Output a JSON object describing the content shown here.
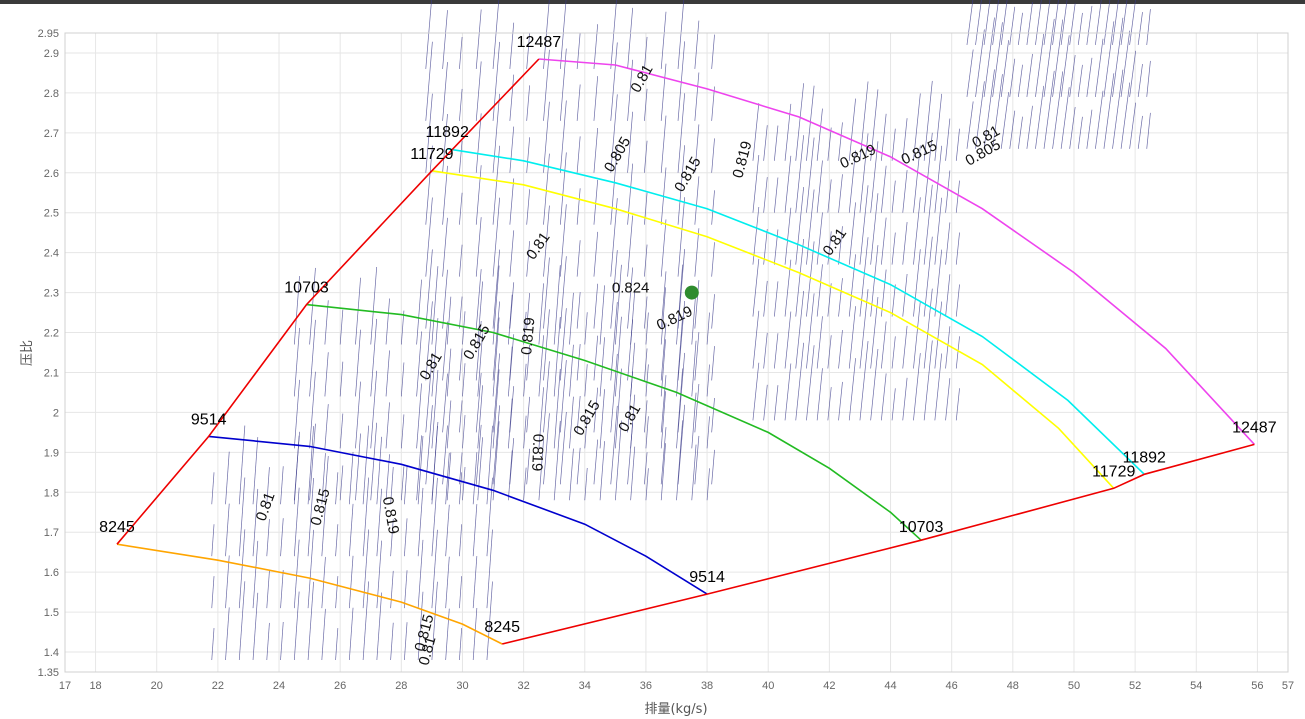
{
  "chart_data": {
    "type": "line",
    "title": "",
    "xlabel": "排量(kg/s)",
    "ylabel": "压比",
    "xlim": [
      17,
      57
    ],
    "ylim": [
      1.35,
      2.95
    ],
    "x_ticks": [
      17,
      18,
      20,
      22,
      24,
      26,
      28,
      30,
      32,
      34,
      36,
      38,
      40,
      42,
      44,
      46,
      48,
      50,
      52,
      54,
      56,
      57
    ],
    "y_ticks": [
      1.35,
      1.4,
      1.5,
      1.6,
      1.7,
      1.8,
      1.9,
      2,
      2.1,
      2.2,
      2.3,
      2.4,
      2.5,
      2.6,
      2.7,
      2.8,
      2.9,
      2.95
    ],
    "grid": true,
    "speed_lines": [
      {
        "name": "8245",
        "color": "#ffa500",
        "points": [
          [
            18.7,
            1.67
          ],
          [
            22,
            1.63
          ],
          [
            25,
            1.585
          ],
          [
            28,
            1.525
          ],
          [
            30,
            1.47
          ],
          [
            31.3,
            1.42
          ]
        ],
        "labels": [
          {
            "text": "8245",
            "x": 18.7,
            "y": 1.7
          },
          {
            "text": "8245",
            "x": 31.3,
            "y": 1.45
          }
        ]
      },
      {
        "name": "9514",
        "color": "#0000cd",
        "points": [
          [
            21.7,
            1.94
          ],
          [
            25,
            1.915
          ],
          [
            28,
            1.87
          ],
          [
            31,
            1.805
          ],
          [
            34,
            1.72
          ],
          [
            36,
            1.64
          ],
          [
            38,
            1.545
          ]
        ],
        "labels": [
          {
            "text": "9514",
            "x": 21.7,
            "y": 1.97
          },
          {
            "text": "9514",
            "x": 38,
            "y": 1.575
          }
        ]
      },
      {
        "name": "10703",
        "color": "#22bb22",
        "points": [
          [
            24.9,
            2.27
          ],
          [
            28,
            2.245
          ],
          [
            31,
            2.2
          ],
          [
            34,
            2.13
          ],
          [
            37,
            2.05
          ],
          [
            40,
            1.95
          ],
          [
            42,
            1.86
          ],
          [
            44,
            1.75
          ],
          [
            45,
            1.68
          ]
        ],
        "labels": [
          {
            "text": "10703",
            "x": 24.9,
            "y": 2.3
          },
          {
            "text": "10703",
            "x": 45,
            "y": 1.7
          }
        ]
      },
      {
        "name": "11729",
        "color": "#ffff00",
        "points": [
          [
            29,
            2.605
          ],
          [
            32,
            2.57
          ],
          [
            35,
            2.51
          ],
          [
            38,
            2.44
          ],
          [
            41,
            2.35
          ],
          [
            44,
            2.25
          ],
          [
            47,
            2.12
          ],
          [
            49.5,
            1.96
          ],
          [
            51.3,
            1.81
          ]
        ],
        "labels": [
          {
            "text": "11729",
            "x": 29,
            "y": 2.635
          },
          {
            "text": "11729",
            "x": 51.3,
            "y": 1.84
          }
        ]
      },
      {
        "name": "11892",
        "color": "#00eeee",
        "points": [
          [
            29.5,
            2.66
          ],
          [
            32,
            2.63
          ],
          [
            35,
            2.575
          ],
          [
            38,
            2.51
          ],
          [
            41,
            2.42
          ],
          [
            44,
            2.32
          ],
          [
            47,
            2.19
          ],
          [
            49.8,
            2.03
          ],
          [
            52.3,
            1.845
          ]
        ],
        "labels": [
          {
            "text": "11892",
            "x": 29.5,
            "y": 2.69
          },
          {
            "text": "11892",
            "x": 52.3,
            "y": 1.875
          }
        ]
      },
      {
        "name": "12487",
        "color": "#ee44ee",
        "points": [
          [
            32.5,
            2.885
          ],
          [
            35,
            2.87
          ],
          [
            38,
            2.81
          ],
          [
            41,
            2.74
          ],
          [
            44,
            2.64
          ],
          [
            47,
            2.51
          ],
          [
            50,
            2.35
          ],
          [
            53,
            2.16
          ],
          [
            55.9,
            1.92
          ]
        ],
        "labels": [
          {
            "text": "12487",
            "x": 32.5,
            "y": 2.915
          },
          {
            "text": "12487",
            "x": 55.9,
            "y": 1.95
          }
        ]
      }
    ],
    "surge_line": {
      "color": "#ee0000",
      "points": [
        [
          18.7,
          1.67
        ],
        [
          21.7,
          1.94
        ],
        [
          24.9,
          2.27
        ],
        [
          29,
          2.605
        ],
        [
          32.5,
          2.885
        ]
      ]
    },
    "choke_line": {
      "color": "#ee0000",
      "points": [
        [
          31.3,
          1.42
        ],
        [
          38,
          1.545
        ],
        [
          45,
          1.68
        ],
        [
          51.3,
          1.81
        ],
        [
          52.3,
          1.845
        ],
        [
          55.9,
          1.92
        ]
      ]
    },
    "efficiency_contours": [
      {
        "text": "0.805",
        "x": 35.2,
        "y": 2.64,
        "angle": -60
      },
      {
        "text": "0.81",
        "x": 36,
        "y": 2.83,
        "angle": -60
      },
      {
        "text": "0.815",
        "x": 37.5,
        "y": 2.59,
        "angle": -60
      },
      {
        "text": "0.819",
        "x": 39.3,
        "y": 2.63,
        "angle": -75
      },
      {
        "text": "0.81",
        "x": 32.6,
        "y": 2.41,
        "angle": -55
      },
      {
        "text": "0.824",
        "x": 35.5,
        "y": 2.3,
        "angle": 0
      },
      {
        "text": "0.819",
        "x": 37,
        "y": 2.225,
        "angle": -25
      },
      {
        "text": "0.819",
        "x": 43,
        "y": 2.63,
        "angle": -25
      },
      {
        "text": "0.815",
        "x": 45,
        "y": 2.64,
        "angle": -25
      },
      {
        "text": "0.805",
        "x": 47.1,
        "y": 2.64,
        "angle": -30
      },
      {
        "text": "0.81",
        "x": 47.2,
        "y": 2.68,
        "angle": -30
      },
      {
        "text": "0.81",
        "x": 42.3,
        "y": 2.42,
        "angle": -55
      },
      {
        "text": "0.81",
        "x": 29.1,
        "y": 2.11,
        "angle": -60
      },
      {
        "text": "0.815",
        "x": 30.6,
        "y": 2.17,
        "angle": -60
      },
      {
        "text": "0.819",
        "x": 32.3,
        "y": 2.19,
        "angle": -85
      },
      {
        "text": "0.815",
        "x": 34.2,
        "y": 1.98,
        "angle": -60
      },
      {
        "text": "0.81",
        "x": 35.6,
        "y": 1.98,
        "angle": -60
      },
      {
        "text": "0.819",
        "x": 32.3,
        "y": 1.9,
        "angle": 92
      },
      {
        "text": "0.81",
        "x": 23.7,
        "y": 1.76,
        "angle": -70
      },
      {
        "text": "0.815",
        "x": 25.5,
        "y": 1.76,
        "angle": -75
      },
      {
        "text": "0.819",
        "x": 27.5,
        "y": 1.74,
        "angle": 80
      },
      {
        "text": "0.815",
        "x": 28.9,
        "y": 1.445,
        "angle": -75
      },
      {
        "text": "0.81",
        "x": 29,
        "y": 1.4,
        "angle": -75
      }
    ],
    "operating_point": {
      "x": 37.5,
      "y": 2.3,
      "color": "#2e8b2e"
    }
  }
}
